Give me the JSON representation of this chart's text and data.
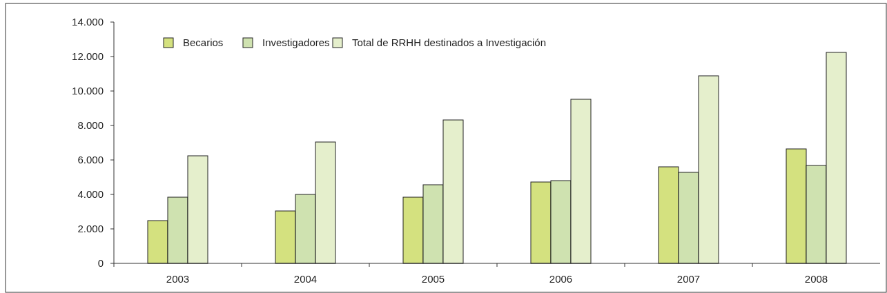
{
  "chart_data": {
    "type": "bar",
    "categories": [
      "2003",
      "2004",
      "2005",
      "2006",
      "2007",
      "2008"
    ],
    "series": [
      {
        "name": "Becarios",
        "color": "#d4e17f",
        "values": [
          2480,
          3040,
          3840,
          4720,
          5600,
          6640
        ]
      },
      {
        "name": "Investigadores",
        "color": "#cfe2b0",
        "values": [
          3840,
          4000,
          4560,
          4800,
          5280,
          5680
        ]
      },
      {
        "name": "Total de RRHH destinados a Investigación",
        "color": "#e5efcc",
        "values": [
          6240,
          7040,
          8320,
          9520,
          10880,
          12240
        ]
      }
    ],
    "ylim": [
      0,
      14000
    ],
    "yticks": [
      0,
      {
        "value": 2000,
        "label": "2.000"
      },
      {
        "value": 4000,
        "label": "4.000"
      },
      {
        "value": 6000,
        "label": "6.000"
      },
      {
        "value": 8000,
        "label": "8.000"
      },
      {
        "value": 10000,
        "label": "10.000"
      },
      {
        "value": 12000,
        "label": "12.000"
      },
      {
        "value": 14000,
        "label": "14.000"
      }
    ],
    "grid": false,
    "legend": "top left"
  }
}
